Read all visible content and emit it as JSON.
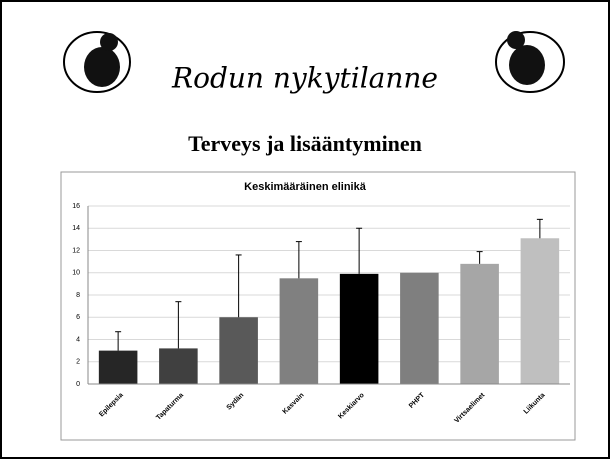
{
  "slide": {
    "title": "Rodun nykytilanne",
    "subtitle": "Terveys ja lisääntyminen"
  },
  "chart_data": {
    "type": "bar",
    "title": "Keskimääräinen elinikä",
    "categories": [
      "Epilepsia",
      "Tapaturma",
      "Sydän",
      "Kasvain",
      "Keskiarvo",
      "PHPT",
      "Virtsaelimet",
      "Liikunta"
    ],
    "values": [
      3.0,
      3.2,
      6.0,
      9.5,
      9.9,
      10.0,
      10.8,
      13.1
    ],
    "errors": [
      1.7,
      4.2,
      5.6,
      3.3,
      4.1,
      null,
      1.1,
      1.7
    ],
    "colors": [
      "#262626",
      "#404040",
      "#595959",
      "#808080",
      "#000000",
      "#7f7f7f",
      "#a6a6a6",
      "#bfbfbf"
    ],
    "ylim": [
      0,
      16
    ],
    "yticks": [
      0,
      2,
      4,
      6,
      8,
      10,
      12,
      14,
      16
    ],
    "grid": true
  }
}
